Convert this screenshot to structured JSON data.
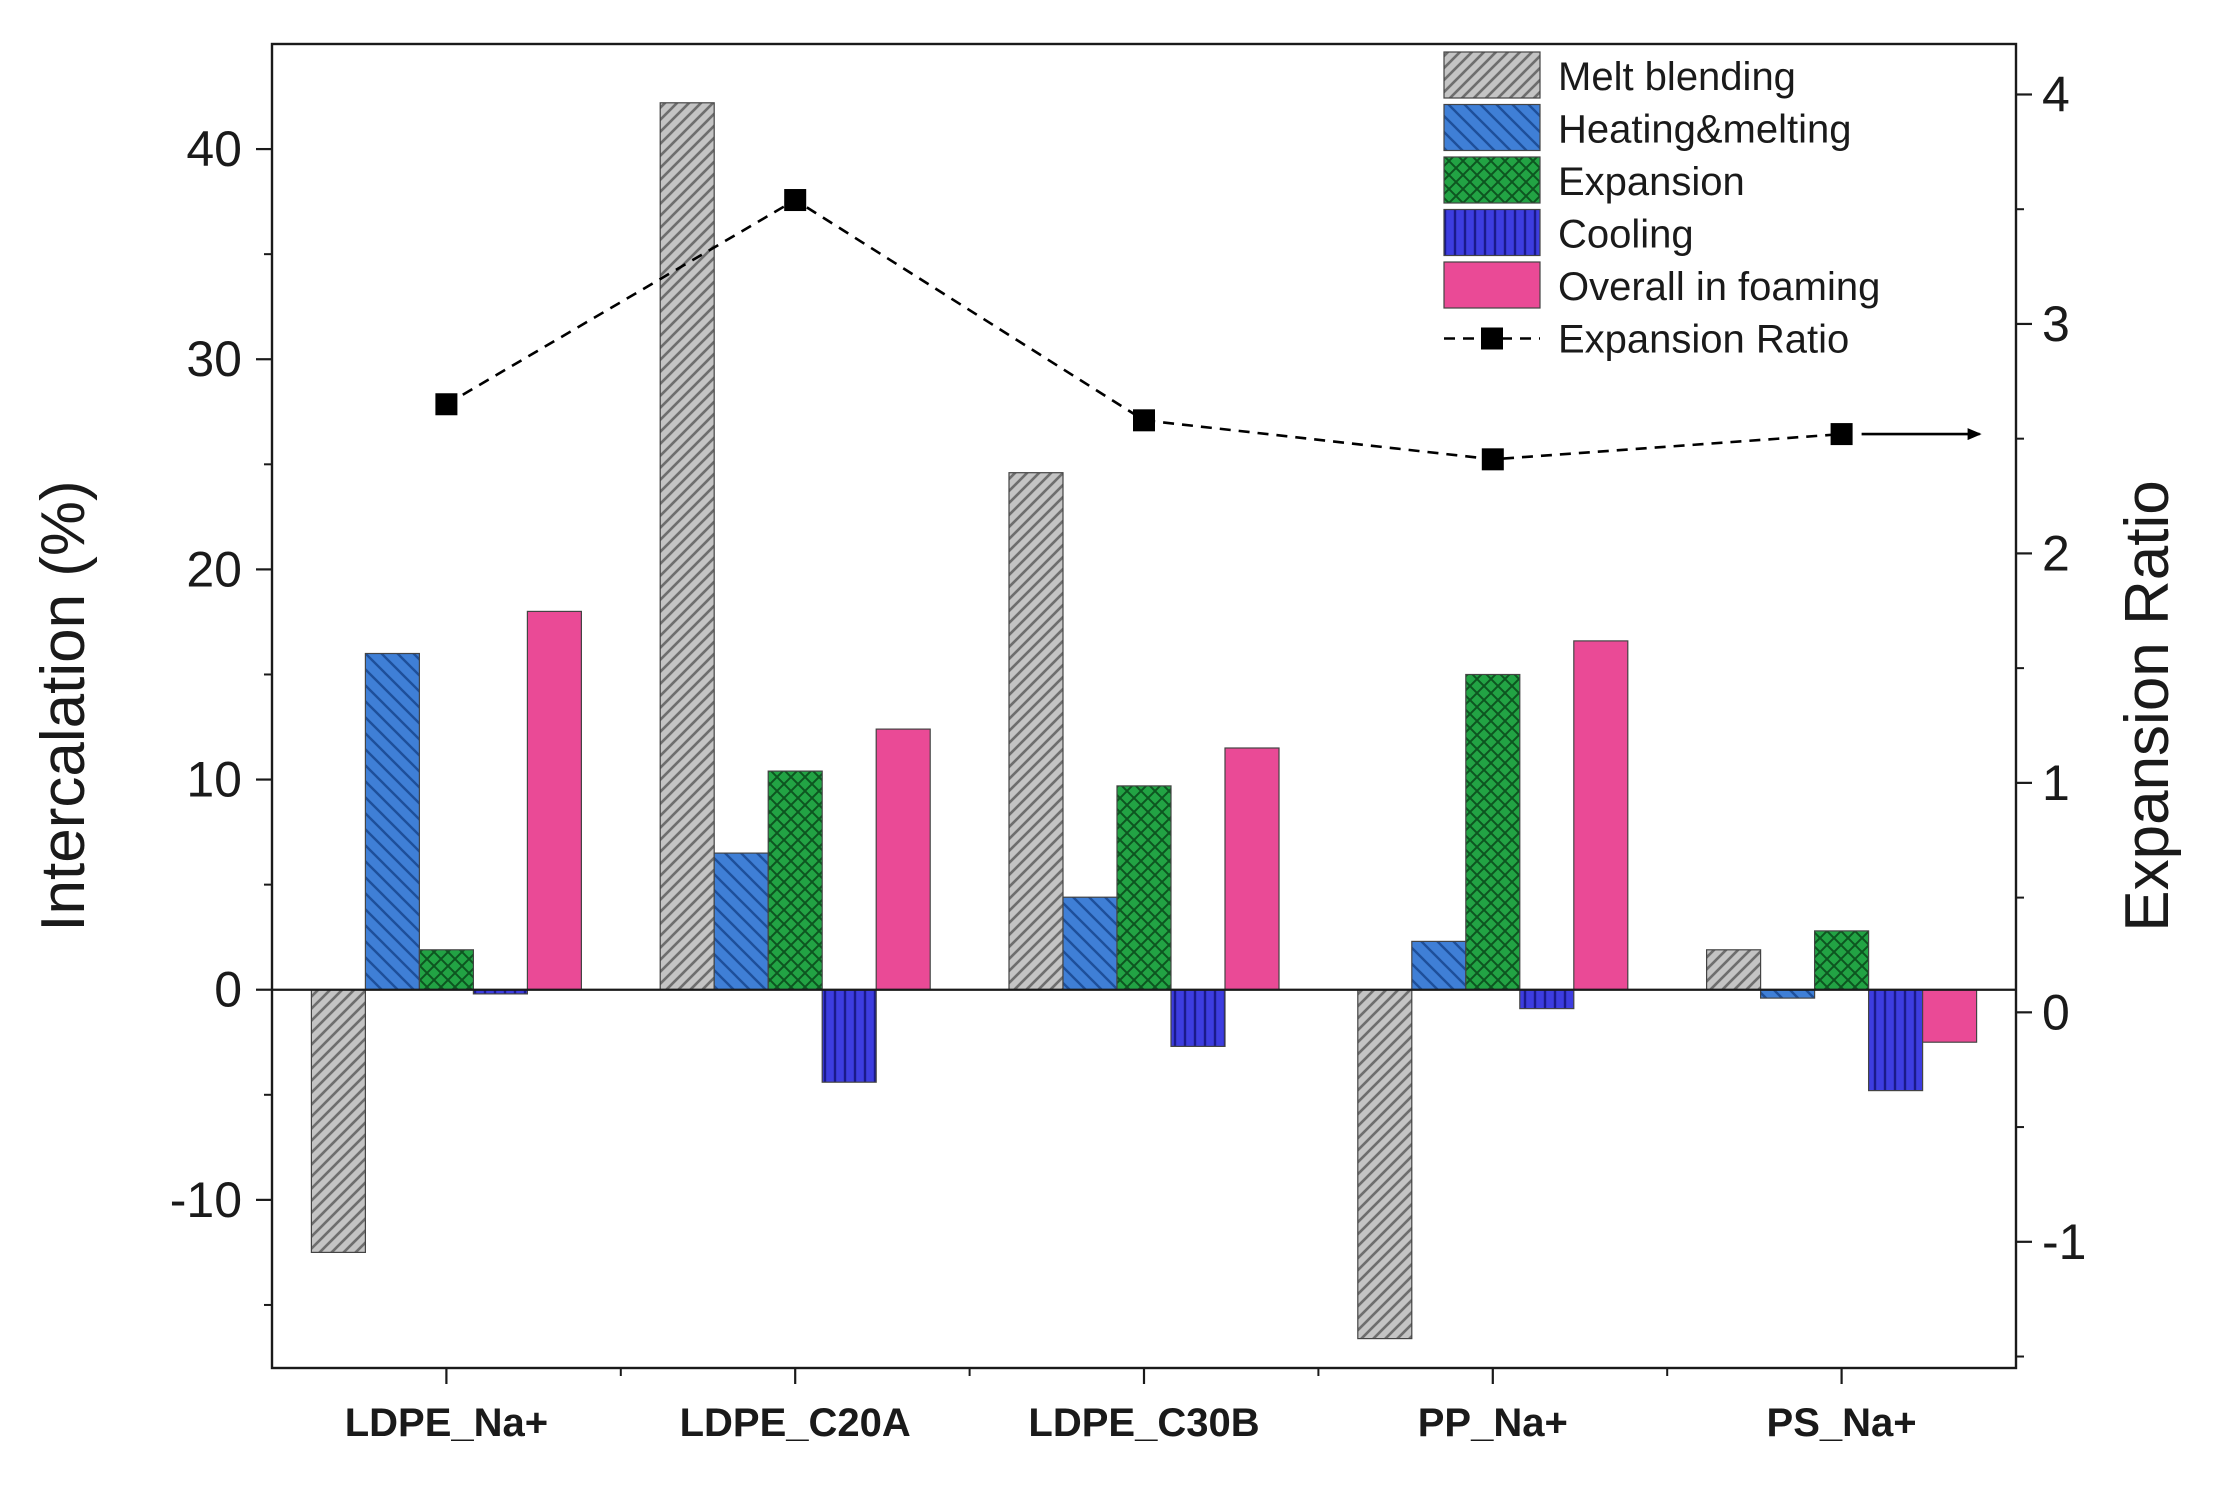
{
  "chart_data": {
    "type": "bar",
    "title": "",
    "categories": [
      "LDPE_Na+",
      "LDPE_C20A",
      "LDPE_C30B",
      "PP_Na+",
      "PS_Na+"
    ],
    "series": [
      {
        "name": "Melt blending",
        "values": [
          -12.5,
          42.2,
          24.6,
          -16.6,
          1.9
        ],
        "color": "#b4b4b4",
        "pattern": "diagonal-up"
      },
      {
        "name": "Heating&melting",
        "values": [
          16.0,
          6.5,
          4.4,
          2.3,
          -0.4
        ],
        "color": "#3f7fd6",
        "pattern": "diagonal-down"
      },
      {
        "name": "Expansion",
        "values": [
          1.9,
          10.4,
          9.7,
          15.0,
          2.8
        ],
        "color": "#1e9c3a",
        "pattern": "crosshatch"
      },
      {
        "name": "Cooling",
        "values": [
          -0.2,
          -4.4,
          -2.7,
          -0.9,
          -4.8
        ],
        "color": "#3b3bd6",
        "pattern": "vertical"
      },
      {
        "name": "Overall in foaming",
        "values": [
          18.0,
          12.4,
          11.5,
          16.6,
          -2.5
        ],
        "color": "#ea4a96",
        "pattern": "solid"
      }
    ],
    "line_series": {
      "name": "Expansion Ratio",
      "axis": "right",
      "values": [
        2.65,
        3.54,
        2.58,
        2.41,
        2.52
      ],
      "color": "#000000",
      "style": "dashed",
      "marker": "square"
    },
    "ylabel": "Intercalation (%)",
    "ylabel_right": "Expansion Ratio",
    "ylim": [
      -18,
      45
    ],
    "ylim_right": [
      -1.55,
      4.22
    ],
    "yticks": [
      -10,
      0,
      10,
      20,
      30,
      40
    ],
    "yticks_right": [
      -1,
      0,
      1,
      2,
      3,
      4
    ],
    "ytick_labels": [
      "-10",
      "0",
      "10",
      "20",
      "30",
      "40"
    ],
    "ytick_labels_right": [
      "-1",
      "0",
      "1",
      "2",
      "3",
      "4"
    ],
    "legend_position": "top-right",
    "grid": false
  }
}
